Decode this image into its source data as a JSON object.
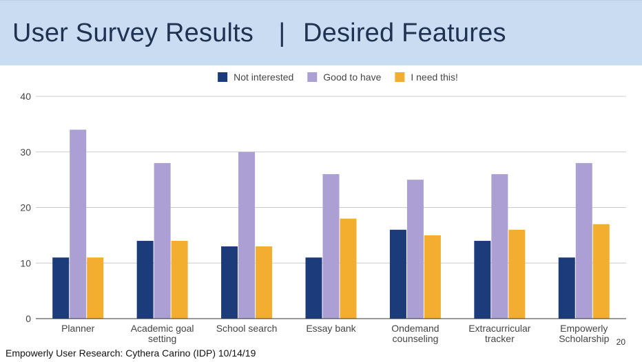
{
  "slide": {
    "title_main": "User Survey Results",
    "title_sep": "|",
    "title_sub": "Desired Features",
    "footer": "Empowerly User Research: Cythera Carino (IDP) 10/14/19",
    "page_number": "20"
  },
  "colors": {
    "title_band": "#c9dcf1",
    "title_text": "#1e3251"
  },
  "chart_data": {
    "type": "bar",
    "title": "",
    "xlabel": "",
    "ylabel": "",
    "ylim": [
      0,
      40
    ],
    "yticks": [
      0,
      10,
      20,
      30,
      40
    ],
    "grid": true,
    "legend_position": "top",
    "categories": [
      [
        "Planner"
      ],
      [
        "Academic goal",
        "setting"
      ],
      [
        "School search"
      ],
      [
        "Essay bank"
      ],
      [
        "Ondemand",
        "counseling"
      ],
      [
        "Extracurricular",
        "tracker"
      ],
      [
        "Empowerly",
        "Scholarship"
      ]
    ],
    "series": [
      {
        "name": "Not interested",
        "color": "#1c3b7a",
        "values": [
          11,
          14,
          13,
          11,
          16,
          14,
          11
        ]
      },
      {
        "name": "Good to have",
        "color": "#ab9fd3",
        "values": [
          34,
          28,
          30,
          26,
          25,
          26,
          28
        ]
      },
      {
        "name": "I need this!",
        "color": "#f3ad2f",
        "values": [
          11,
          14,
          13,
          18,
          15,
          16,
          17
        ]
      }
    ]
  }
}
